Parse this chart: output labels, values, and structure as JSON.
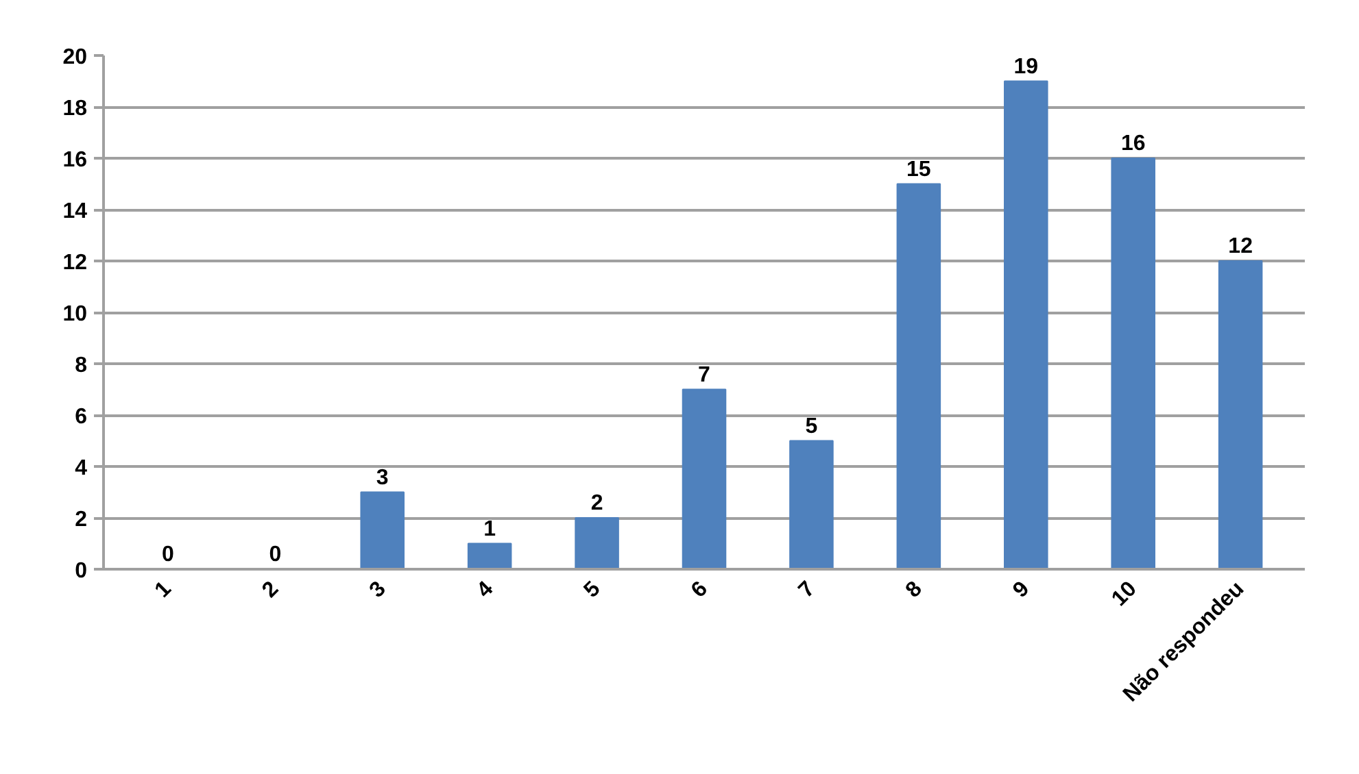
{
  "chart_data": {
    "type": "bar",
    "categories": [
      "1",
      "2",
      "3",
      "4",
      "5",
      "6",
      "7",
      "8",
      "9",
      "10",
      "Não respondeu"
    ],
    "values": [
      0,
      0,
      3,
      1,
      2,
      7,
      5,
      15,
      19,
      16,
      12
    ],
    "color": "#4f81bd",
    "ylim": [
      0,
      20
    ],
    "yticks": [
      0,
      2,
      4,
      6,
      8,
      10,
      12,
      14,
      16,
      18,
      20
    ],
    "grid": "y",
    "data_labels": true
  }
}
